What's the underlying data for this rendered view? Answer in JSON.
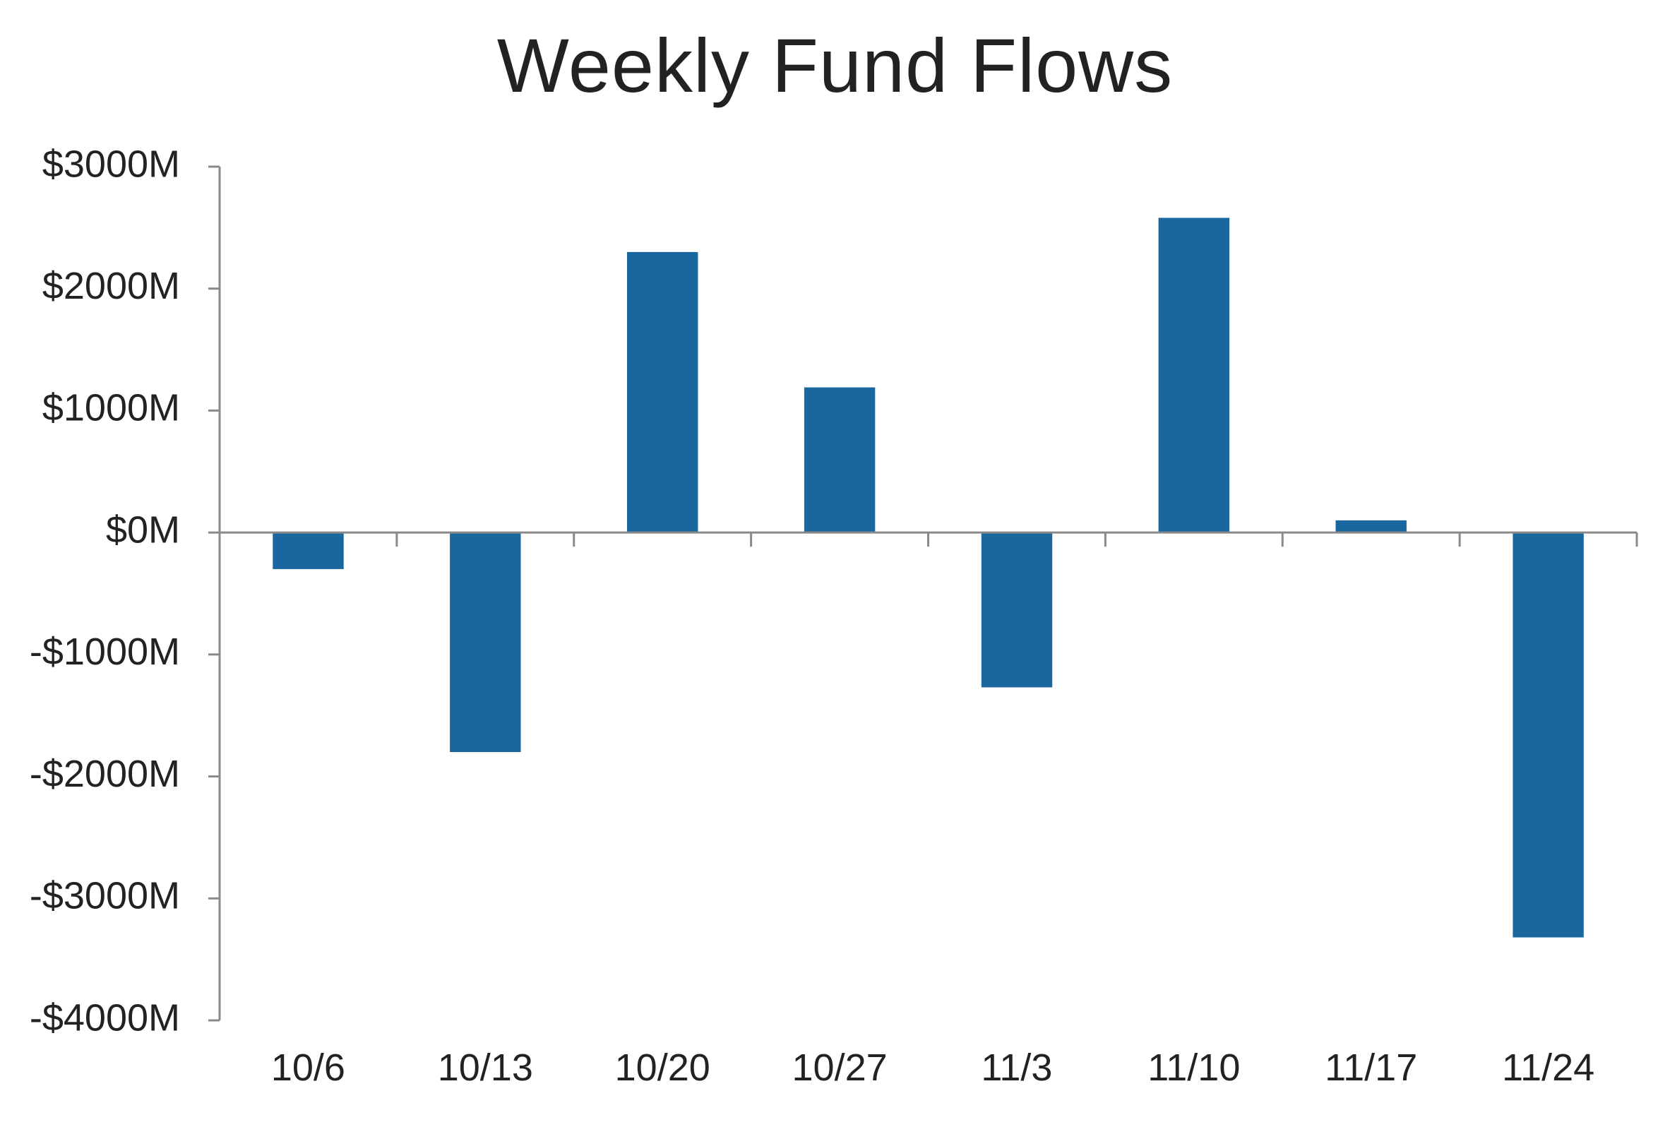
{
  "chart_data": {
    "type": "bar",
    "title": "Weekly Fund Flows",
    "xlabel": "",
    "ylabel": "",
    "categories": [
      "10/6",
      "10/13",
      "10/20",
      "10/27",
      "11/3",
      "11/10",
      "11/17",
      "11/24"
    ],
    "values": [
      -300,
      -1800,
      2300,
      1190,
      -1270,
      2580,
      100,
      -3320
    ],
    "unit": "$M",
    "ylim": [
      -4000,
      3000
    ],
    "yticks": [
      3000,
      2000,
      1000,
      0,
      -1000,
      -2000,
      -3000,
      -4000
    ],
    "ytick_labels": [
      "$3000M",
      "$2000M",
      "$1000M",
      "$0M",
      "-$1000M",
      "-$2000M",
      "-$3000M",
      "-$4000M"
    ],
    "grid": false,
    "legend": "none",
    "colors": {
      "bar": "#1a67a0",
      "axis": "#8a8a8a",
      "text": "#222222"
    }
  }
}
